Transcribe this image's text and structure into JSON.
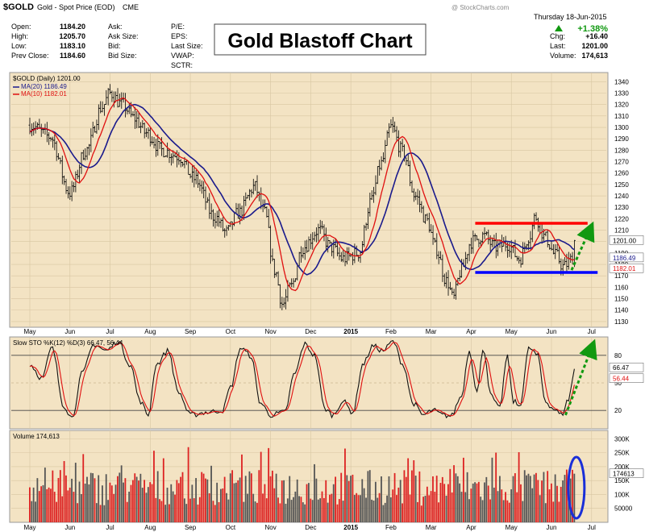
{
  "header": {
    "symbol": "$GOLD",
    "name": "Gold - Spot Price (EOD)",
    "exchange": "CME",
    "date": "Thursday 18-Jun-2015",
    "fields": [
      {
        "label": "Open:",
        "value": "1184.20"
      },
      {
        "label": "High:",
        "value": "1205.70"
      },
      {
        "label": "Low:",
        "value": "1183.10"
      },
      {
        "label": "Prev Close:",
        "value": "1184.60"
      }
    ],
    "mid_labels": [
      "Ask:",
      "Ask Size:",
      "Bid:",
      "Bid Size:"
    ],
    "right_labels": [
      "P/E:",
      "EPS:",
      "Last Size:",
      "VWAP:",
      "SCTR:"
    ],
    "stats": [
      {
        "label": "Chg:",
        "value": "+16.40"
      },
      {
        "label": "Last:",
        "value": "1201.00"
      },
      {
        "label": "Volume:",
        "value": "174,613"
      }
    ],
    "pct_change": "+1.38%",
    "watermark": "@ StockCharts.com",
    "overlay_title": "Gold Blastoff Chart"
  },
  "legend": {
    "main": "$GOLD (Daily) 1201.00",
    "ma20": "MA(20) 1186.49",
    "ma10": "MA(10) 1182.01",
    "sto": "Slow STO %K(12) %D(3) 66.47, 56.44",
    "volume": "Volume 174,613"
  },
  "colors": {
    "panel_bg": "#f3e3c3",
    "price": "#000000",
    "ma20": "#1a1a8c",
    "ma10": "#e01010",
    "resistance": "#ff0000",
    "support": "#0000ff",
    "arrow": "#119911",
    "vol_up": "#555555",
    "vol_down": "#dd2222"
  },
  "chart_data": {
    "type": "line",
    "x_months": [
      "May",
      "Jun",
      "Jul",
      "Aug",
      "Sep",
      "Oct",
      "Nov",
      "Dec",
      "2015",
      "Feb",
      "Mar",
      "Apr",
      "May",
      "Jun",
      "Jul"
    ],
    "price_axis": {
      "ticks": [
        1130,
        1140,
        1150,
        1160,
        1170,
        1180,
        1190,
        1200,
        1210,
        1220,
        1230,
        1240,
        1250,
        1260,
        1270,
        1280,
        1290,
        1300,
        1310,
        1320,
        1330,
        1340
      ],
      "ylim": [
        1125,
        1348
      ]
    },
    "price_keypoints": [
      {
        "month": 0,
        "price": 1302
      },
      {
        "month": 0.5,
        "price": 1292
      },
      {
        "month": 1.0,
        "price": 1243
      },
      {
        "month": 1.4,
        "price": 1280
      },
      {
        "month": 1.8,
        "price": 1318
      },
      {
        "month": 2.0,
        "price": 1330
      },
      {
        "month": 2.3,
        "price": 1320
      },
      {
        "month": 2.6,
        "price": 1308
      },
      {
        "month": 2.9,
        "price": 1295
      },
      {
        "month": 3.3,
        "price": 1280
      },
      {
        "month": 3.7,
        "price": 1275
      },
      {
        "month": 4.1,
        "price": 1255
      },
      {
        "month": 4.6,
        "price": 1222
      },
      {
        "month": 4.9,
        "price": 1208
      },
      {
        "month": 5.2,
        "price": 1225
      },
      {
        "month": 5.6,
        "price": 1248
      },
      {
        "month": 5.85,
        "price": 1225
      },
      {
        "month": 6.1,
        "price": 1175
      },
      {
        "month": 6.3,
        "price": 1145
      },
      {
        "month": 6.5,
        "price": 1160
      },
      {
        "month": 6.8,
        "price": 1195
      },
      {
        "month": 7.2,
        "price": 1210
      },
      {
        "month": 7.5,
        "price": 1195
      },
      {
        "month": 7.8,
        "price": 1185
      },
      {
        "month": 8.2,
        "price": 1190
      },
      {
        "month": 8.5,
        "price": 1235
      },
      {
        "month": 8.75,
        "price": 1268
      },
      {
        "month": 9.0,
        "price": 1300
      },
      {
        "month": 9.3,
        "price": 1278
      },
      {
        "month": 9.6,
        "price": 1240
      },
      {
        "month": 9.9,
        "price": 1218
      },
      {
        "month": 10.1,
        "price": 1195
      },
      {
        "month": 10.4,
        "price": 1165
      },
      {
        "month": 10.55,
        "price": 1150
      },
      {
        "month": 10.75,
        "price": 1175
      },
      {
        "month": 11.0,
        "price": 1200
      },
      {
        "month": 11.3,
        "price": 1205
      },
      {
        "month": 11.6,
        "price": 1195
      },
      {
        "month": 11.9,
        "price": 1198
      },
      {
        "month": 12.2,
        "price": 1185
      },
      {
        "month": 12.45,
        "price": 1205
      },
      {
        "month": 12.6,
        "price": 1222
      },
      {
        "month": 12.85,
        "price": 1203
      },
      {
        "month": 13.1,
        "price": 1188
      },
      {
        "month": 13.3,
        "price": 1178
      },
      {
        "month": 13.5,
        "price": 1184
      },
      {
        "month": 13.6,
        "price": 1201
      }
    ],
    "last_values": {
      "price": 1201.0,
      "ma20": 1186.49,
      "ma10": 1182.01
    },
    "resistance": {
      "price": 1216,
      "from_month": 11.1,
      "to_month": 13.9
    },
    "support": {
      "price": 1173,
      "from_month": 11.1,
      "to_month": 14.15
    },
    "stochastic": {
      "ticks": [
        20,
        50,
        80
      ],
      "ylim": [
        0,
        100
      ],
      "last_k": 66.47,
      "last_d": 56.44,
      "k_keypoints": [
        {
          "month": 0,
          "k": 70
        },
        {
          "month": 0.3,
          "k": 55
        },
        {
          "month": 0.55,
          "k": 88
        },
        {
          "month": 0.85,
          "k": 25
        },
        {
          "month": 1.05,
          "k": 12
        },
        {
          "month": 1.3,
          "k": 60
        },
        {
          "month": 1.6,
          "k": 92
        },
        {
          "month": 1.9,
          "k": 85
        },
        {
          "month": 2.2,
          "k": 95
        },
        {
          "month": 2.5,
          "k": 70
        },
        {
          "month": 2.75,
          "k": 30
        },
        {
          "month": 2.95,
          "k": 15
        },
        {
          "month": 3.15,
          "k": 70
        },
        {
          "month": 3.45,
          "k": 85
        },
        {
          "month": 3.7,
          "k": 40
        },
        {
          "month": 4.0,
          "k": 15
        },
        {
          "month": 4.4,
          "k": 18
        },
        {
          "month": 4.8,
          "k": 20
        },
        {
          "month": 5.0,
          "k": 45
        },
        {
          "month": 5.25,
          "k": 88
        },
        {
          "month": 5.5,
          "k": 80
        },
        {
          "month": 5.75,
          "k": 28
        },
        {
          "month": 6.0,
          "k": 15
        },
        {
          "month": 6.35,
          "k": 18
        },
        {
          "month": 6.6,
          "k": 60
        },
        {
          "month": 6.85,
          "k": 92
        },
        {
          "month": 7.1,
          "k": 80
        },
        {
          "month": 7.35,
          "k": 22
        },
        {
          "month": 7.55,
          "k": 15
        },
        {
          "month": 7.8,
          "k": 30
        },
        {
          "month": 8.05,
          "k": 18
        },
        {
          "month": 8.3,
          "k": 70
        },
        {
          "month": 8.55,
          "k": 90
        },
        {
          "month": 8.8,
          "k": 85
        },
        {
          "month": 9.05,
          "k": 95
        },
        {
          "month": 9.3,
          "k": 70
        },
        {
          "month": 9.55,
          "k": 28
        },
        {
          "month": 9.8,
          "k": 15
        },
        {
          "month": 10.05,
          "k": 20
        },
        {
          "month": 10.3,
          "k": 15
        },
        {
          "month": 10.5,
          "k": 14
        },
        {
          "month": 10.75,
          "k": 35
        },
        {
          "month": 10.95,
          "k": 85
        },
        {
          "month": 11.15,
          "k": 40
        },
        {
          "month": 11.3,
          "k": 88
        },
        {
          "month": 11.5,
          "k": 35
        },
        {
          "month": 11.7,
          "k": 22
        },
        {
          "month": 11.9,
          "k": 78
        },
        {
          "month": 12.05,
          "k": 30
        },
        {
          "month": 12.2,
          "k": 25
        },
        {
          "month": 12.45,
          "k": 88
        },
        {
          "month": 12.65,
          "k": 80
        },
        {
          "month": 12.85,
          "k": 30
        },
        {
          "month": 13.05,
          "k": 22
        },
        {
          "month": 13.25,
          "k": 15
        },
        {
          "month": 13.4,
          "k": 30
        },
        {
          "month": 13.6,
          "k": 66
        }
      ]
    },
    "volume": {
      "ticks": [
        "50000",
        "100K",
        "150K",
        "200K",
        "250K",
        "300K"
      ],
      "tick_values": [
        50000,
        100000,
        150000,
        200000,
        250000,
        300000
      ],
      "ylim": [
        0,
        330000
      ],
      "last": 174613
    }
  }
}
